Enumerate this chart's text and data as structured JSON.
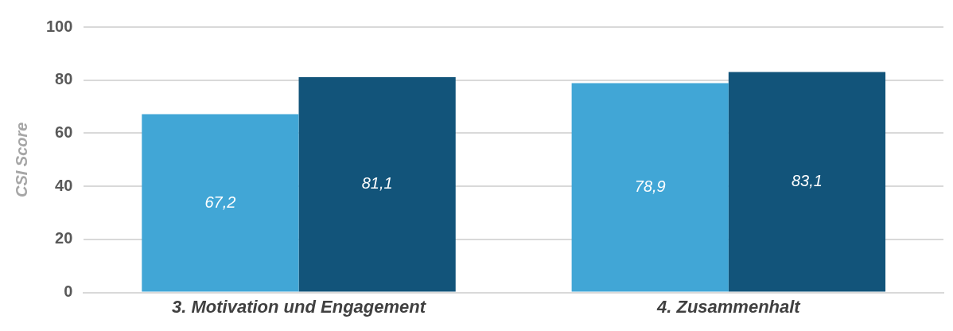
{
  "chart_data": {
    "type": "bar",
    "ylabel": "CSI Score",
    "categories": [
      "3. Motivation und Engagement",
      "4. Zusammenhalt"
    ],
    "series": [
      {
        "color": "#41a6d6",
        "values": [
          67.2,
          78.9
        ],
        "value_labels": [
          "67,2",
          "78,9"
        ]
      },
      {
        "color": "#12547a",
        "values": [
          81.1,
          83.1
        ],
        "value_labels": [
          "81,1",
          "83,1"
        ]
      }
    ],
    "ylim": [
      0,
      100
    ],
    "yticks": [
      0,
      20,
      40,
      60,
      80,
      100
    ],
    "grid": "y",
    "legend": false
  }
}
